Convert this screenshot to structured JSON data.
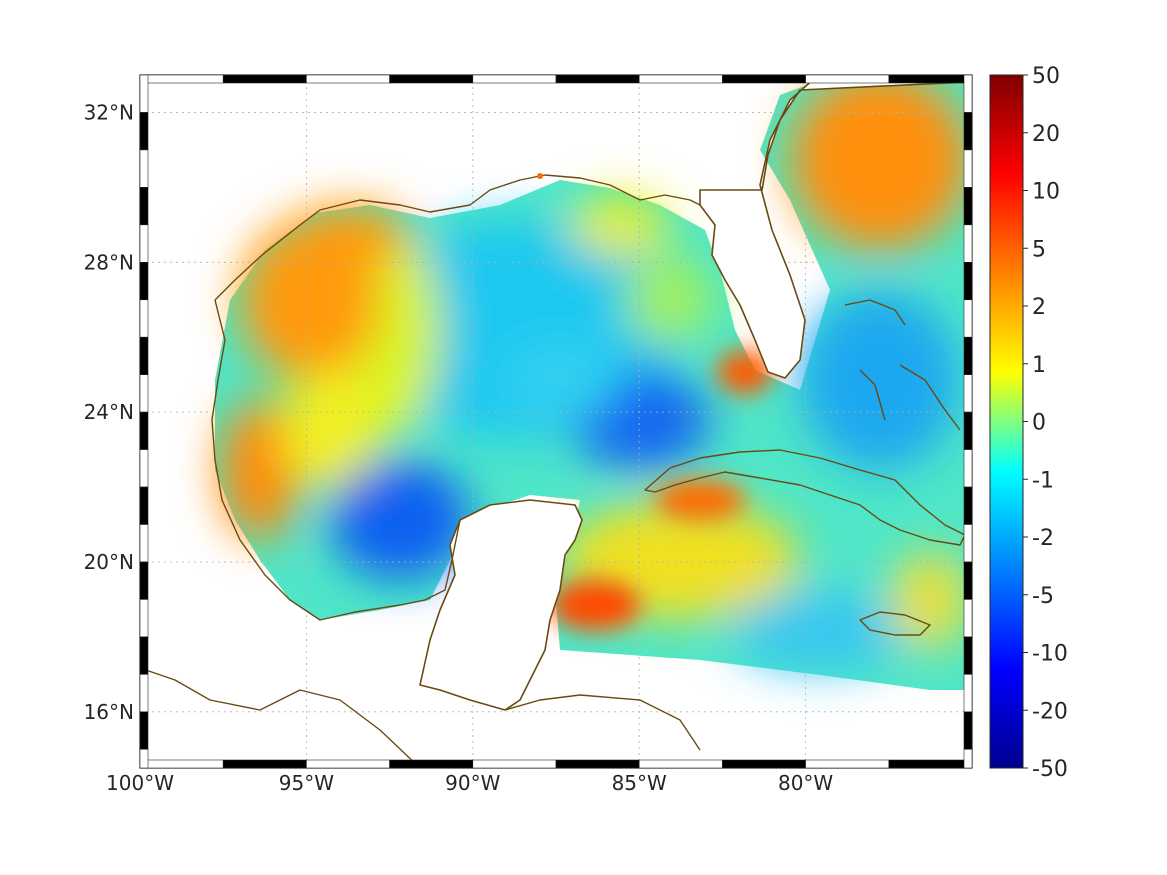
{
  "map": {
    "lon_ticks": [
      {
        "value": -100,
        "label": "100°W"
      },
      {
        "value": -95,
        "label": "95°W"
      },
      {
        "value": -90,
        "label": "90°W"
      },
      {
        "value": -85,
        "label": "85°W"
      },
      {
        "value": -80,
        "label": "80°W"
      }
    ],
    "lat_ticks": [
      {
        "value": 32,
        "label": "32°N"
      },
      {
        "value": 28,
        "label": "28°N"
      },
      {
        "value": 24,
        "label": "24°N"
      },
      {
        "value": 20,
        "label": "20°N"
      },
      {
        "value": 16,
        "label": "16°N"
      }
    ],
    "lon_range": [
      -100,
      -75
    ],
    "lat_range": [
      14.5,
      33
    ],
    "grid": true,
    "coastline_color": "#6b4a12",
    "colormap": "jet"
  },
  "colorbar": {
    "labels": [
      "50",
      "20",
      "10",
      "5",
      "2",
      "1",
      "0",
      "-1",
      "-2",
      "-5",
      "-10",
      "-20",
      "-50"
    ],
    "colors": [
      "#7f0000",
      "#ff0000",
      "#ff8000",
      "#ffff00",
      "#00ffff",
      "#0080ff",
      "#0000ff",
      "#00008f"
    ]
  },
  "chart_data": {
    "type": "heatmap",
    "title": "",
    "xlabel": "",
    "ylabel": "",
    "xlim": [
      -100,
      -75
    ],
    "ylim": [
      14.5,
      33
    ],
    "color_scale": [
      -50,
      50
    ],
    "colorbar_ticks": [
      50,
      20,
      10,
      5,
      2,
      1,
      0,
      -1,
      -2,
      -5,
      -10,
      -20,
      -50
    ],
    "regions": [
      {
        "lon": -96,
        "lat": 27.5,
        "value": 5
      },
      {
        "lon": -96.5,
        "lat": 21.5,
        "value": 5
      },
      {
        "lon": -92,
        "lat": 20,
        "value": -5
      },
      {
        "lon": -88,
        "lat": 24.5,
        "value": -1
      },
      {
        "lon": -85,
        "lat": 23.5,
        "value": -5
      },
      {
        "lon": -82,
        "lat": 25.2,
        "value": 10
      },
      {
        "lon": -86,
        "lat": 18.5,
        "value": 10
      },
      {
        "lon": -84,
        "lat": 21.5,
        "value": 5
      },
      {
        "lon": -78,
        "lat": 30.5,
        "value": 5
      },
      {
        "lon": -79,
        "lat": 24.5,
        "value": -2
      },
      {
        "lon": -85,
        "lat": 29.5,
        "value": 2
      },
      {
        "lon": -77,
        "lat": 18.5,
        "value": 1
      }
    ]
  }
}
